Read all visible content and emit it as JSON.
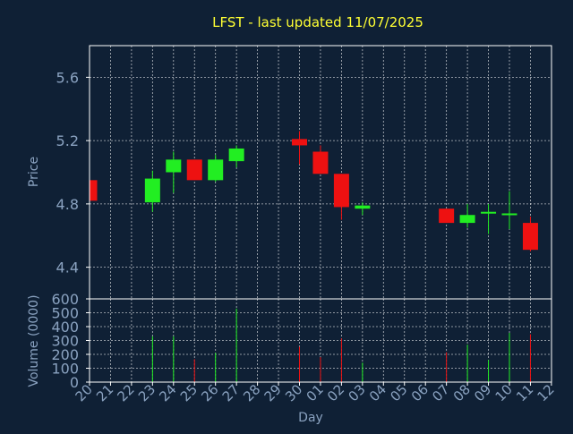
{
  "chart_data": {
    "type": "candlestick",
    "title": "LFST - last updated 11/07/2025",
    "xlabel": "Day",
    "colors": {
      "background": "#0f2035",
      "frame": "#ffffff",
      "grid": "#ffffff",
      "title": "#ffff33",
      "label": "#8aa2c0",
      "up": "#22ee22",
      "down": "#ee1111"
    },
    "x_ticks": [
      "20",
      "21",
      "22",
      "23",
      "24",
      "25",
      "26",
      "27",
      "28",
      "29",
      "30",
      "01",
      "02",
      "03",
      "04",
      "05",
      "06",
      "07",
      "08",
      "09",
      "10",
      "11",
      "12"
    ],
    "price_panel": {
      "ylabel": "Price",
      "ylim": [
        4.2,
        5.8
      ],
      "y_ticks": [
        4.4,
        4.8,
        5.2,
        5.6
      ],
      "y_tick_labels": [
        "4.4",
        "4.8",
        "5.2",
        "5.6"
      ],
      "grid": true
    },
    "volume_panel": {
      "ylabel": "Volume (0000)",
      "ylim": [
        0,
        600
      ],
      "y_ticks": [
        0,
        100,
        200,
        300,
        400,
        500,
        600
      ],
      "y_tick_labels": [
        "0",
        "100",
        "200",
        "300",
        "400",
        "500",
        "600"
      ],
      "grid": true
    },
    "candles": [
      {
        "i": 0,
        "open": 4.95,
        "close": 4.82,
        "high": 4.95,
        "low": 4.82,
        "volume": 0
      },
      {
        "i": 3,
        "open": 4.81,
        "close": 4.96,
        "high": 5.01,
        "low": 4.75,
        "volume": 330
      },
      {
        "i": 4,
        "open": 5.0,
        "close": 5.08,
        "high": 5.13,
        "low": 4.87,
        "volume": 330
      },
      {
        "i": 5,
        "open": 5.08,
        "close": 4.95,
        "high": 5.08,
        "low": 4.95,
        "volume": 165
      },
      {
        "i": 6,
        "open": 4.95,
        "close": 5.08,
        "high": 5.11,
        "low": 4.94,
        "volume": 210
      },
      {
        "i": 7,
        "open": 5.07,
        "close": 5.15,
        "high": 5.17,
        "low": 5.03,
        "volume": 530
      },
      {
        "i": 10,
        "open": 5.21,
        "close": 5.17,
        "high": 5.26,
        "low": 5.05,
        "volume": 255
      },
      {
        "i": 11,
        "open": 5.13,
        "close": 4.99,
        "high": 5.17,
        "low": 4.99,
        "volume": 180
      },
      {
        "i": 12,
        "open": 4.99,
        "close": 4.78,
        "high": 4.99,
        "low": 4.7,
        "volume": 315
      },
      {
        "i": 13,
        "open": 4.77,
        "close": 4.79,
        "high": 4.81,
        "low": 4.73,
        "volume": 140
      },
      {
        "i": 17,
        "open": 4.77,
        "close": 4.68,
        "high": 4.77,
        "low": 4.68,
        "volume": 215
      },
      {
        "i": 18,
        "open": 4.68,
        "close": 4.73,
        "high": 4.8,
        "low": 4.65,
        "volume": 270
      },
      {
        "i": 19,
        "open": 4.74,
        "close": 4.75,
        "high": 4.8,
        "low": 4.61,
        "volume": 160
      },
      {
        "i": 20,
        "open": 4.73,
        "close": 4.74,
        "high": 4.88,
        "low": 4.64,
        "volume": 355
      },
      {
        "i": 21,
        "open": 4.68,
        "close": 4.51,
        "high": 4.72,
        "low": 4.5,
        "volume": 345
      }
    ]
  }
}
